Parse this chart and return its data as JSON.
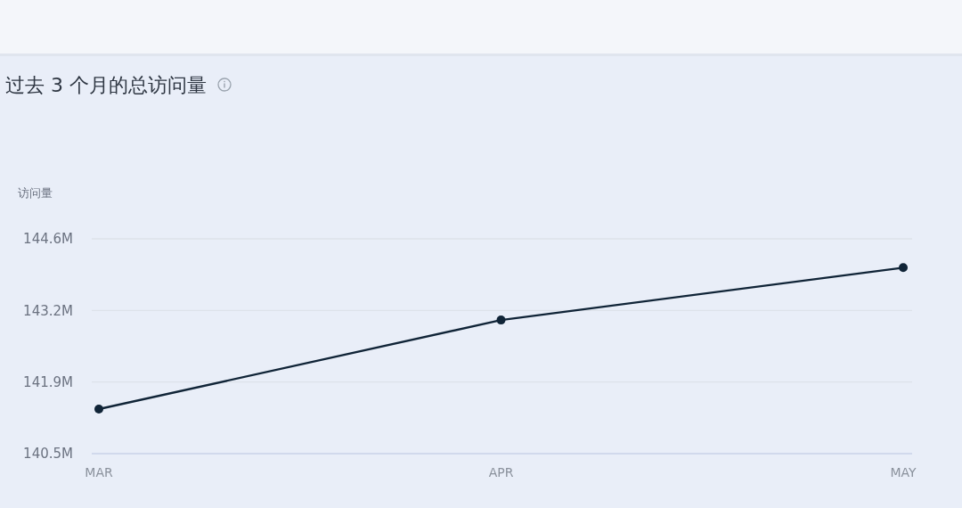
{
  "chart_data": {
    "type": "line",
    "title": "过去 3 个月的总访问量",
    "ylabel": "访问量",
    "categories": [
      "MAR",
      "APR",
      "MAY"
    ],
    "series": [
      {
        "color": "#102437",
        "values": [
          141.35,
          143.05,
          144.05
        ]
      }
    ],
    "ylim": [
      140.5,
      144.6
    ],
    "yticks": [
      {
        "value": 140.5,
        "label": "140.5M"
      },
      {
        "value": 141.867,
        "label": "141.9M"
      },
      {
        "value": 143.233,
        "label": "143.2M"
      },
      {
        "value": 144.6,
        "label": "144.6M"
      }
    ],
    "grid": "y",
    "marker": "circle"
  }
}
